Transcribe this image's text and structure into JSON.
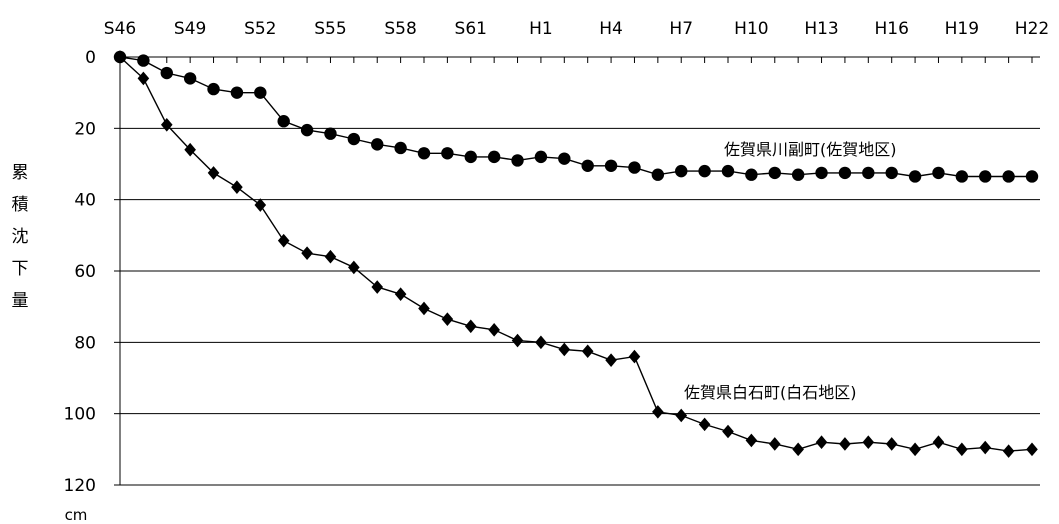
{
  "chart_data": {
    "type": "line",
    "title": "",
    "xlabel": "",
    "ylabel": "累積沈下量",
    "y_unit": "cm",
    "x_axis_position": "top",
    "y_inverted": true,
    "ylim": [
      0,
      120
    ],
    "yticks": [
      0,
      20,
      40,
      60,
      80,
      100,
      120
    ],
    "grid": "horizontal",
    "x_start_year": 1971,
    "x_end_year": 2010,
    "xticks": [
      {
        "year": 1971,
        "label": "S46"
      },
      {
        "year": 1974,
        "label": "S49"
      },
      {
        "year": 1977,
        "label": "S52"
      },
      {
        "year": 1980,
        "label": "S55"
      },
      {
        "year": 1983,
        "label": "S58"
      },
      {
        "year": 1986,
        "label": "S61"
      },
      {
        "year": 1989,
        "label": "H1"
      },
      {
        "year": 1992,
        "label": "H4"
      },
      {
        "year": 1995,
        "label": "H7"
      },
      {
        "year": 1998,
        "label": "H10"
      },
      {
        "year": 2001,
        "label": "H13"
      },
      {
        "year": 2004,
        "label": "H16"
      },
      {
        "year": 2007,
        "label": "H19"
      },
      {
        "year": 2010,
        "label": "H22"
      }
    ],
    "series": [
      {
        "name": "佐賀県川副町(佐賀地区)",
        "marker": "circle",
        "x": [
          1971,
          1972,
          1973,
          1974,
          1975,
          1976,
          1977,
          1978,
          1979,
          1980,
          1981,
          1982,
          1983,
          1984,
          1985,
          1986,
          1987,
          1988,
          1989,
          1990,
          1991,
          1992,
          1993,
          1994,
          1995,
          1996,
          1997,
          1998,
          1999,
          2000,
          2001,
          2002,
          2003,
          2004,
          2005,
          2006,
          2007,
          2008,
          2009,
          2010
        ],
        "values": [
          0,
          1,
          4.5,
          6,
          9,
          10,
          10,
          18,
          20.5,
          21.5,
          23,
          24.5,
          25.5,
          27,
          27,
          28,
          28,
          29,
          28,
          28.5,
          30.5,
          30.5,
          31,
          33,
          32,
          32,
          32,
          33,
          32.5,
          33,
          32.5,
          32.5,
          32.5,
          32.5,
          33.5,
          32.5,
          33.5,
          33.5,
          33.5,
          33.5
        ]
      },
      {
        "name": "佐賀県白石町(白石地区)",
        "marker": "diamond",
        "x": [
          1971,
          1972,
          1973,
          1974,
          1975,
          1976,
          1977,
          1978,
          1979,
          1980,
          1981,
          1982,
          1983,
          1984,
          1985,
          1986,
          1987,
          1988,
          1989,
          1990,
          1991,
          1992,
          1993,
          1994,
          1995,
          1996,
          1997,
          1998,
          1999,
          2000,
          2001,
          2002,
          2003,
          2004,
          2005,
          2006,
          2007,
          2008,
          2009,
          2010
        ],
        "values": [
          0,
          6,
          19,
          26,
          32.5,
          36.5,
          41.5,
          51.5,
          55,
          56,
          59,
          64.5,
          66.5,
          70.5,
          73.5,
          75.5,
          76.5,
          79.5,
          80,
          82,
          82.5,
          85,
          84,
          99.5,
          100.5,
          103,
          105,
          107.5,
          108.5,
          110,
          108,
          108.5,
          108,
          108.5,
          110,
          108,
          110,
          109.5,
          110.5,
          110
        ]
      }
    ],
    "annotations": [
      {
        "text": "佐賀県川副町(佐賀地区)",
        "series_index": 0
      },
      {
        "text": "佐賀県白石町(白石地区)",
        "series_index": 1
      }
    ]
  }
}
